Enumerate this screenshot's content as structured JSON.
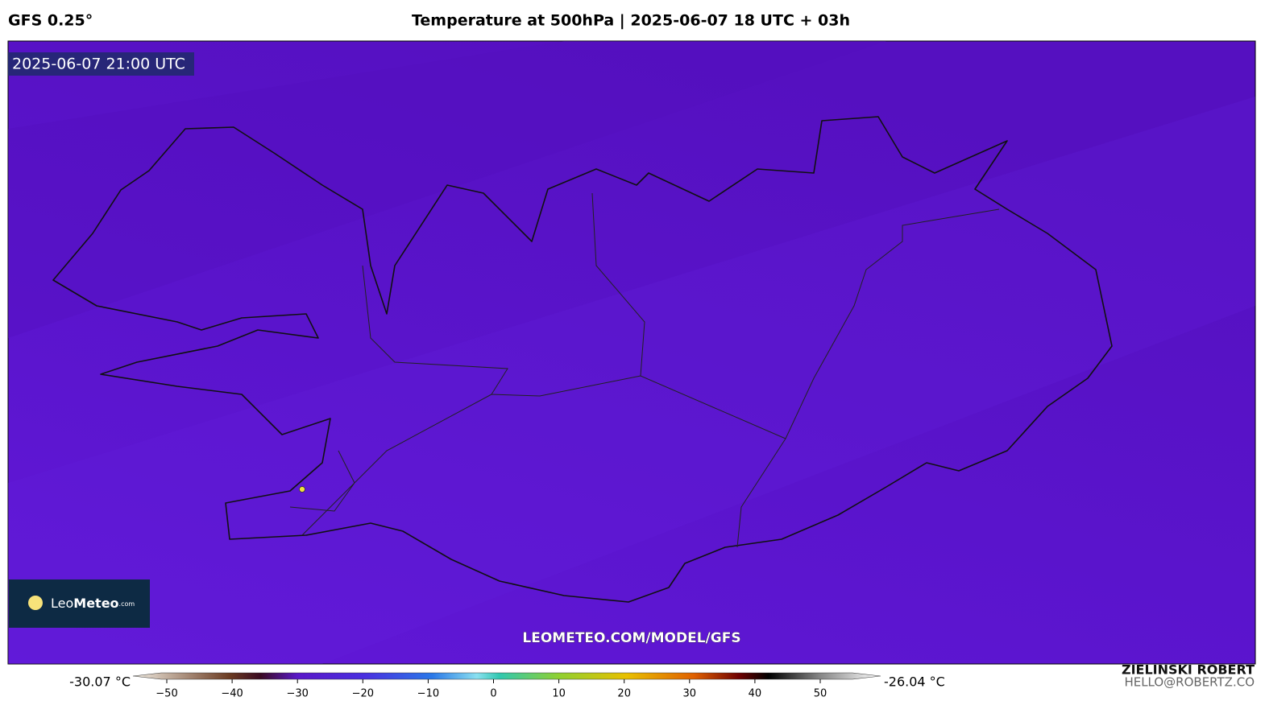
{
  "header": {
    "model": "GFS 0.25°",
    "title": "Temperature at 500hPa | 2025-06-07 18 UTC + 03h"
  },
  "map": {
    "valid_time": "2025-06-07 21:00 UTC",
    "watermark": "LEOMETEO.COM/MODEL/GFS",
    "logo": {
      "brand_light": "Leo",
      "brand_bold": "Meteo",
      "suffix": ".com"
    }
  },
  "colorbar": {
    "min_label": "-30.07 °C",
    "max_label": "-26.04 °C",
    "ticks": [
      {
        "value": -50,
        "label": "−50"
      },
      {
        "value": -40,
        "label": "−40"
      },
      {
        "value": -30,
        "label": "−30"
      },
      {
        "value": -20,
        "label": "−20"
      },
      {
        "value": -10,
        "label": "−10"
      },
      0,
      10,
      20,
      30,
      40,
      50
    ]
  },
  "credits": {
    "author": "ZIELINSKI ROBERT",
    "email": "HELLO@ROBERTZ.CO"
  }
}
